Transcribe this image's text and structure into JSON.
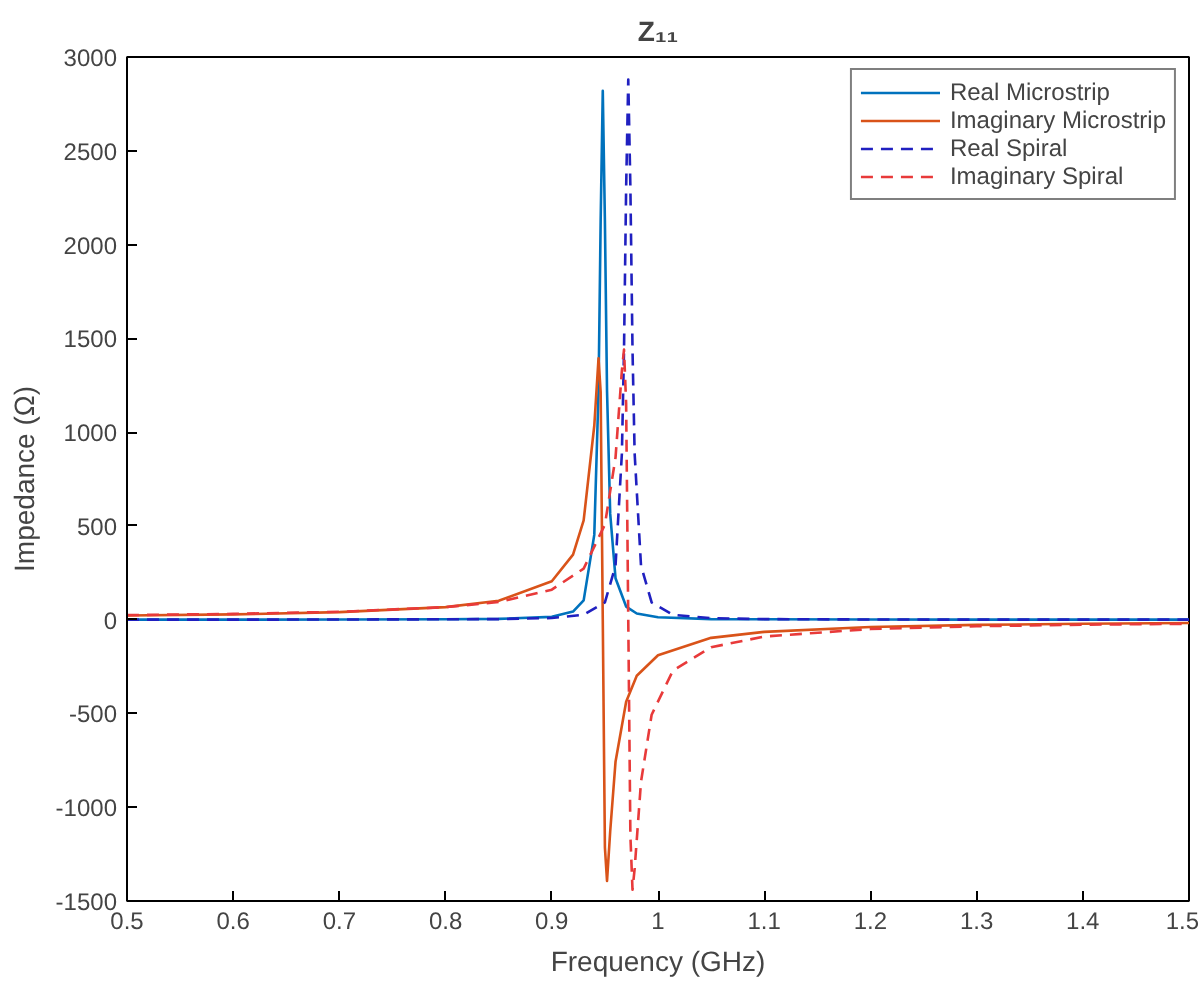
{
  "chart_data": {
    "type": "line",
    "title": "Z₁₁",
    "xlabel": "Frequency (GHz)",
    "ylabel": "Impedance (Ω)",
    "xlim": [
      0.5,
      1.5
    ],
    "ylim": [
      -1500,
      3000
    ],
    "xticks": [
      0.5,
      0.6,
      0.7,
      0.8,
      0.9,
      1,
      1.1,
      1.2,
      1.3,
      1.4,
      1.5
    ],
    "yticks": [
      -1500,
      -1000,
      -500,
      0,
      500,
      1000,
      1500,
      2000,
      2500,
      3000
    ],
    "grid": false,
    "legend": "top right",
    "marker": "none",
    "series": [
      {
        "name": "Real Microstrip",
        "color": "#0072bd",
        "line_style": "solid",
        "x": [
          0.5,
          0.6,
          0.7,
          0.8,
          0.85,
          0.9,
          0.92,
          0.93,
          0.94,
          0.944,
          0.946,
          0.948,
          0.95,
          0.952,
          0.955,
          0.96,
          0.97,
          0.98,
          1.0,
          1.05,
          1.1,
          1.2,
          1.3,
          1.4,
          1.5
        ],
        "values": [
          0,
          0,
          1,
          2,
          4,
          15,
          43,
          103,
          452,
          1220,
          2126,
          2820,
          2126,
          1220,
          564,
          221,
          70,
          33,
          13,
          3,
          2,
          1,
          0,
          0,
          0
        ]
      },
      {
        "name": "Imaginary Microstrip",
        "color": "#d95319",
        "line_style": "solid",
        "x": [
          0.5,
          0.6,
          0.7,
          0.8,
          0.85,
          0.9,
          0.92,
          0.93,
          0.94,
          0.944,
          0.946,
          0.948,
          0.95,
          0.952,
          0.955,
          0.96,
          0.97,
          0.98,
          1.0,
          1.05,
          1.1,
          1.2,
          1.3,
          1.4,
          1.5
        ],
        "values": [
          22,
          28,
          40,
          67,
          101,
          205,
          347,
          529,
          1034,
          1393,
          1214,
          0,
          -1214,
          -1393,
          -1128,
          -758,
          -438,
          -299,
          -190,
          -97,
          -65,
          -39,
          -28,
          -22,
          -18
        ]
      },
      {
        "name": "Real Spiral",
        "color": "#2020c0",
        "line_style": "dashed",
        "x": [
          0.5,
          0.6,
          0.7,
          0.8,
          0.85,
          0.9,
          0.93,
          0.95,
          0.96,
          0.966,
          0.968,
          0.97,
          0.972,
          0.974,
          0.976,
          0.978,
          0.984,
          0.994,
          1.014,
          1.05,
          1.1,
          1.2,
          1.3,
          1.4,
          1.5
        ],
        "values": [
          0,
          0,
          1,
          2,
          3,
          9,
          26,
          92,
          288,
          886,
          1440,
          2304,
          2880,
          2304,
          1440,
          886,
          288,
          92,
          26,
          8,
          3,
          1,
          0,
          0,
          0
        ]
      },
      {
        "name": "Imaginary Spiral",
        "color": "#e83a3a",
        "line_style": "dashed",
        "x": [
          0.5,
          0.6,
          0.7,
          0.8,
          0.85,
          0.9,
          0.93,
          0.95,
          0.96,
          0.966,
          0.968,
          0.97,
          0.972,
          0.974,
          0.976,
          0.978,
          0.984,
          0.994,
          1.014,
          1.05,
          1.1,
          1.2,
          1.3,
          1.4,
          1.5
        ],
        "values": [
          24,
          31,
          42,
          67,
          94,
          160,
          272,
          507,
          864,
          1329,
          1440,
          1152,
          0,
          -1152,
          -1440,
          -1329,
          -864,
          -507,
          -272,
          -147,
          -90,
          -50,
          -35,
          -27,
          -22
        ]
      }
    ]
  }
}
